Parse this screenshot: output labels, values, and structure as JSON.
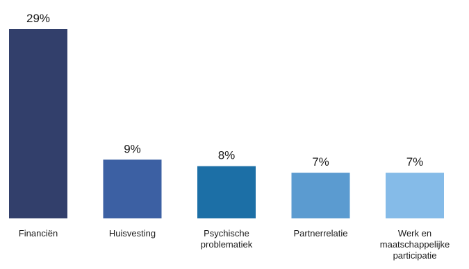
{
  "chart_data": {
    "type": "bar",
    "categories": [
      "Financiën",
      "Huisvesting",
      "Psychische problematiek",
      "Partnerrelatie",
      "Werk en maatschappelijke participatie"
    ],
    "category_lines": [
      [
        "Financiën"
      ],
      [
        "Huisvesting"
      ],
      [
        "Psychische",
        "problematiek"
      ],
      [
        "Partnerrelatie"
      ],
      [
        "Werk en",
        "maatschappelijke",
        "participatie"
      ]
    ],
    "values": [
      29,
      9,
      8,
      7,
      7
    ],
    "data_labels": [
      "29%",
      "9%",
      "8%",
      "7%",
      "7%"
    ],
    "colors": [
      "#323f6b",
      "#3c60a3",
      "#1c6fa6",
      "#5b9bd0",
      "#85bbe8"
    ],
    "ylim": [
      0,
      29
    ],
    "title": "",
    "xlabel": "",
    "ylabel": "",
    "grid": false,
    "legend": "none"
  }
}
